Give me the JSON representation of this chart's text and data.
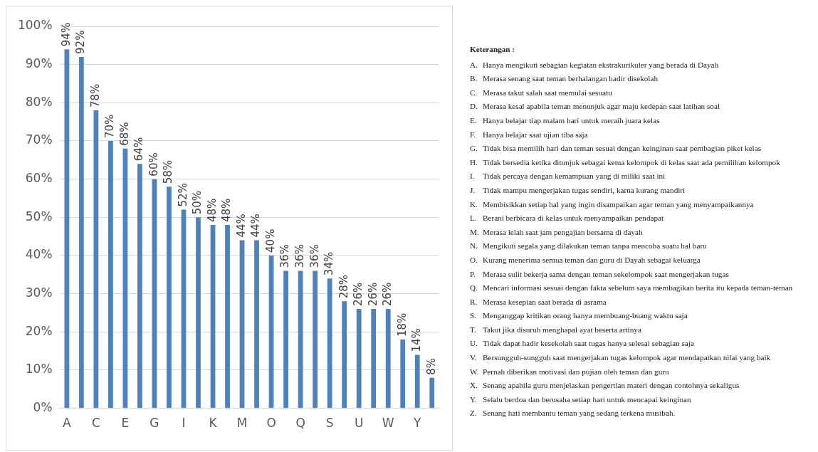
{
  "chart_data": {
    "type": "bar",
    "categories": [
      "A",
      null,
      "C",
      null,
      "E",
      null,
      "G",
      null,
      "I",
      null,
      "K",
      null,
      "M",
      null,
      "O",
      null,
      "Q",
      null,
      "S",
      null,
      "U",
      null,
      "W",
      null,
      "Y",
      null
    ],
    "values": [
      94,
      92,
      78,
      70,
      68,
      64,
      60,
      58,
      52,
      50,
      48,
      48,
      44,
      44,
      40,
      36,
      36,
      36,
      34,
      28,
      26,
      26,
      26,
      18,
      14,
      8
    ],
    "value_labels": [
      "94%",
      "92%",
      "78%",
      "70%",
      "68%",
      "64%",
      "60%",
      "58%",
      "52%",
      "50%",
      "48%",
      "48%",
      "44%",
      "44%",
      "40%",
      "36%",
      "36%",
      "36%",
      "34%",
      "28%",
      "26%",
      "26%",
      "26%",
      "18%",
      "14%",
      "8%"
    ],
    "color": "#4f81bd",
    "ylim": [
      0,
      100
    ],
    "yticks": [
      {
        "value": 0,
        "label": "0%"
      },
      {
        "value": 10,
        "label": "10%"
      },
      {
        "value": 20,
        "label": "20%"
      },
      {
        "value": 30,
        "label": "30%"
      },
      {
        "value": 40,
        "label": "40%"
      },
      {
        "value": 50,
        "label": "50%"
      },
      {
        "value": 60,
        "label": "60%"
      },
      {
        "value": 70,
        "label": "70%"
      },
      {
        "value": 80,
        "label": "80%"
      },
      {
        "value": 90,
        "label": "90%"
      },
      {
        "value": 100,
        "label": "100%"
      }
    ],
    "grid": "y",
    "legend": false,
    "annotations": [
      "Keterangan :",
      "A.\tHanya mengikuti sebagian kegiatan ekstrakurikuler yang berada di Dayah",
      "B.\tMerasa senang saat teman berhalangan hadir disekolah",
      "C.\tMerasa takut salah saat memulai sesuatu",
      "D.\tMerasa kesal apabila teman menunjuk agar maju kedepan saat latihan soal",
      "E.\tHanya belajar tiap malam hari untuk meraih juara kelas",
      "F.\tHanya belajar saat ujian tiba saja",
      "G.\tTidak bisa memilih hari dan teman sesuai dengan keinginan saat pembagian piket kelas",
      "H.\tTidak bersedia ketika ditunjuk sebagai ketua kelompok di kelas saat ada pemilihan kelompok",
      "I.\tTidak percaya dengan kemampuan yang di miliki saat ini",
      "J.\tTidak mampu mengerjakan tugas sendiri, karna kurang mandiri",
      "K.\tMembisikkan setiap hal yang ingin disampaikan agar teman yang menyampaikannya",
      "L.\tBerani berbicara di kelas untuk menyampaikan pendapat",
      "M.\tMerasa lelah saat jam pengajian bersama di dayah",
      "N.\tMengikuti segala yang dilakukan teman tanpa mencoba suatu hal baru",
      "O.\tKurang menerima semua teman dan guru di Dayah sebagai keluarga",
      "P.\tMerasa sulit bekerja sama dengan teman sekelompok saat mengerjakan tugas",
      "Q.\tMencari informasi sesuai dengan fakta sebelum saya membagikan berita itu kepada teman-teman",
      "R.\tMerasa kesepian saat berada di asrama",
      "S.\tMenganggap kritikan orang hanya membuang-buang waktu saja",
      "T.\tTakut jika disuruh menghapal ayat beserta artinya",
      "U.\tTidak dapat hadir kesekolah saat tugas hanya selesai sebagian saja",
      "V.\tBersungguh-sungguh saat mengerjakan tugas kelompok agar mendapatkan nilai yang baik",
      "W.\tPernah diberikan motivasi dan pujian oleh teman dan guru",
      "X.\tSenang apabila guru menjelaskan pengertian materi dengan contohnya sekaligus",
      "Y.\tSelalu berdoa dan berusaha setiap hari untuk mencapai keinginan",
      "Z.\tSenang hati membantu teman yang sedang terkena musibah."
    ]
  }
}
